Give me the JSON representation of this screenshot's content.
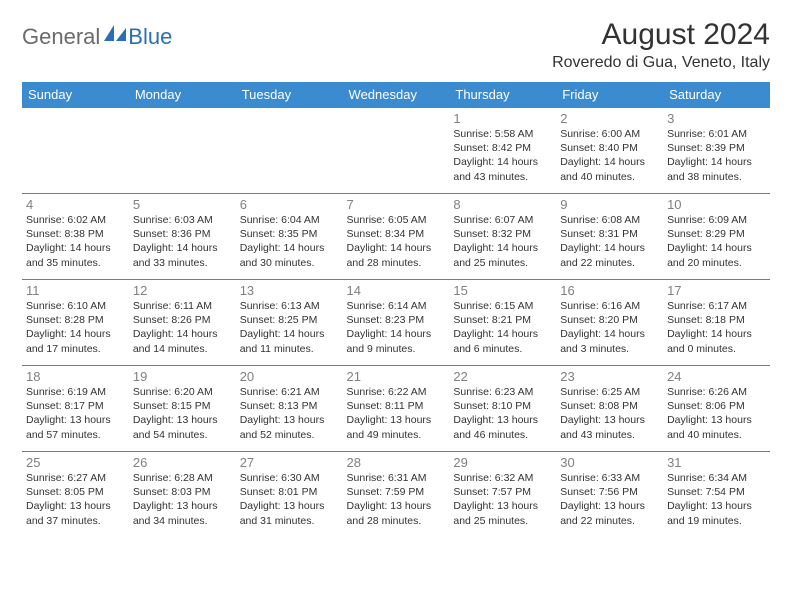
{
  "logo": {
    "part1": "General",
    "part2": "Blue"
  },
  "title": "August 2024",
  "location": "Roveredo di Gua, Veneto, Italy",
  "header_bg": "#3a8bd0",
  "header_fg": "#ffffff",
  "border_color": "#3a8bd0",
  "daynum_color": "#808080",
  "text_color": "#333333",
  "weekdays": [
    "Sunday",
    "Monday",
    "Tuesday",
    "Wednesday",
    "Thursday",
    "Friday",
    "Saturday"
  ],
  "weeks": [
    [
      {
        "day": "",
        "sunrise": "",
        "sunset": "",
        "daylight": ""
      },
      {
        "day": "",
        "sunrise": "",
        "sunset": "",
        "daylight": ""
      },
      {
        "day": "",
        "sunrise": "",
        "sunset": "",
        "daylight": ""
      },
      {
        "day": "",
        "sunrise": "",
        "sunset": "",
        "daylight": ""
      },
      {
        "day": "1",
        "sunrise": "Sunrise: 5:58 AM",
        "sunset": "Sunset: 8:42 PM",
        "daylight": "Daylight: 14 hours and 43 minutes."
      },
      {
        "day": "2",
        "sunrise": "Sunrise: 6:00 AM",
        "sunset": "Sunset: 8:40 PM",
        "daylight": "Daylight: 14 hours and 40 minutes."
      },
      {
        "day": "3",
        "sunrise": "Sunrise: 6:01 AM",
        "sunset": "Sunset: 8:39 PM",
        "daylight": "Daylight: 14 hours and 38 minutes."
      }
    ],
    [
      {
        "day": "4",
        "sunrise": "Sunrise: 6:02 AM",
        "sunset": "Sunset: 8:38 PM",
        "daylight": "Daylight: 14 hours and 35 minutes."
      },
      {
        "day": "5",
        "sunrise": "Sunrise: 6:03 AM",
        "sunset": "Sunset: 8:36 PM",
        "daylight": "Daylight: 14 hours and 33 minutes."
      },
      {
        "day": "6",
        "sunrise": "Sunrise: 6:04 AM",
        "sunset": "Sunset: 8:35 PM",
        "daylight": "Daylight: 14 hours and 30 minutes."
      },
      {
        "day": "7",
        "sunrise": "Sunrise: 6:05 AM",
        "sunset": "Sunset: 8:34 PM",
        "daylight": "Daylight: 14 hours and 28 minutes."
      },
      {
        "day": "8",
        "sunrise": "Sunrise: 6:07 AM",
        "sunset": "Sunset: 8:32 PM",
        "daylight": "Daylight: 14 hours and 25 minutes."
      },
      {
        "day": "9",
        "sunrise": "Sunrise: 6:08 AM",
        "sunset": "Sunset: 8:31 PM",
        "daylight": "Daylight: 14 hours and 22 minutes."
      },
      {
        "day": "10",
        "sunrise": "Sunrise: 6:09 AM",
        "sunset": "Sunset: 8:29 PM",
        "daylight": "Daylight: 14 hours and 20 minutes."
      }
    ],
    [
      {
        "day": "11",
        "sunrise": "Sunrise: 6:10 AM",
        "sunset": "Sunset: 8:28 PM",
        "daylight": "Daylight: 14 hours and 17 minutes."
      },
      {
        "day": "12",
        "sunrise": "Sunrise: 6:11 AM",
        "sunset": "Sunset: 8:26 PM",
        "daylight": "Daylight: 14 hours and 14 minutes."
      },
      {
        "day": "13",
        "sunrise": "Sunrise: 6:13 AM",
        "sunset": "Sunset: 8:25 PM",
        "daylight": "Daylight: 14 hours and 11 minutes."
      },
      {
        "day": "14",
        "sunrise": "Sunrise: 6:14 AM",
        "sunset": "Sunset: 8:23 PM",
        "daylight": "Daylight: 14 hours and 9 minutes."
      },
      {
        "day": "15",
        "sunrise": "Sunrise: 6:15 AM",
        "sunset": "Sunset: 8:21 PM",
        "daylight": "Daylight: 14 hours and 6 minutes."
      },
      {
        "day": "16",
        "sunrise": "Sunrise: 6:16 AM",
        "sunset": "Sunset: 8:20 PM",
        "daylight": "Daylight: 14 hours and 3 minutes."
      },
      {
        "day": "17",
        "sunrise": "Sunrise: 6:17 AM",
        "sunset": "Sunset: 8:18 PM",
        "daylight": "Daylight: 14 hours and 0 minutes."
      }
    ],
    [
      {
        "day": "18",
        "sunrise": "Sunrise: 6:19 AM",
        "sunset": "Sunset: 8:17 PM",
        "daylight": "Daylight: 13 hours and 57 minutes."
      },
      {
        "day": "19",
        "sunrise": "Sunrise: 6:20 AM",
        "sunset": "Sunset: 8:15 PM",
        "daylight": "Daylight: 13 hours and 54 minutes."
      },
      {
        "day": "20",
        "sunrise": "Sunrise: 6:21 AM",
        "sunset": "Sunset: 8:13 PM",
        "daylight": "Daylight: 13 hours and 52 minutes."
      },
      {
        "day": "21",
        "sunrise": "Sunrise: 6:22 AM",
        "sunset": "Sunset: 8:11 PM",
        "daylight": "Daylight: 13 hours and 49 minutes."
      },
      {
        "day": "22",
        "sunrise": "Sunrise: 6:23 AM",
        "sunset": "Sunset: 8:10 PM",
        "daylight": "Daylight: 13 hours and 46 minutes."
      },
      {
        "day": "23",
        "sunrise": "Sunrise: 6:25 AM",
        "sunset": "Sunset: 8:08 PM",
        "daylight": "Daylight: 13 hours and 43 minutes."
      },
      {
        "day": "24",
        "sunrise": "Sunrise: 6:26 AM",
        "sunset": "Sunset: 8:06 PM",
        "daylight": "Daylight: 13 hours and 40 minutes."
      }
    ],
    [
      {
        "day": "25",
        "sunrise": "Sunrise: 6:27 AM",
        "sunset": "Sunset: 8:05 PM",
        "daylight": "Daylight: 13 hours and 37 minutes."
      },
      {
        "day": "26",
        "sunrise": "Sunrise: 6:28 AM",
        "sunset": "Sunset: 8:03 PM",
        "daylight": "Daylight: 13 hours and 34 minutes."
      },
      {
        "day": "27",
        "sunrise": "Sunrise: 6:30 AM",
        "sunset": "Sunset: 8:01 PM",
        "daylight": "Daylight: 13 hours and 31 minutes."
      },
      {
        "day": "28",
        "sunrise": "Sunrise: 6:31 AM",
        "sunset": "Sunset: 7:59 PM",
        "daylight": "Daylight: 13 hours and 28 minutes."
      },
      {
        "day": "29",
        "sunrise": "Sunrise: 6:32 AM",
        "sunset": "Sunset: 7:57 PM",
        "daylight": "Daylight: 13 hours and 25 minutes."
      },
      {
        "day": "30",
        "sunrise": "Sunrise: 6:33 AM",
        "sunset": "Sunset: 7:56 PM",
        "daylight": "Daylight: 13 hours and 22 minutes."
      },
      {
        "day": "31",
        "sunrise": "Sunrise: 6:34 AM",
        "sunset": "Sunset: 7:54 PM",
        "daylight": "Daylight: 13 hours and 19 minutes."
      }
    ]
  ]
}
